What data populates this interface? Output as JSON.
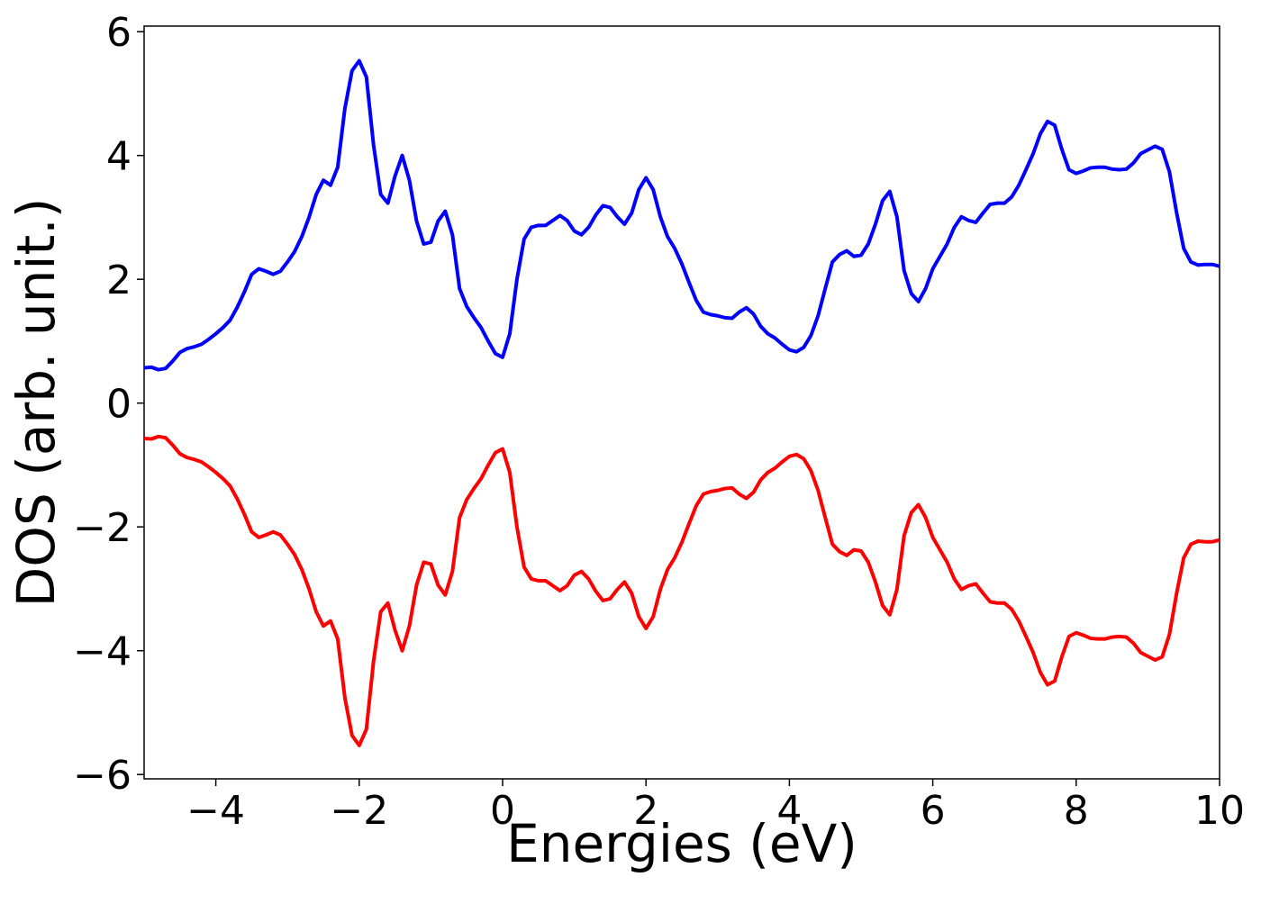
{
  "chart_data": {
    "type": "line",
    "xlabel": "Energies (eV)",
    "ylabel": "DOS (arb. unit.)",
    "x": [
      -5,
      -4.9,
      -4.8,
      -4.7,
      -4.6,
      -4.5,
      -4.4,
      -4.3,
      -4.2,
      -4.1,
      -4,
      -3.9,
      -3.8,
      -3.7,
      -3.6,
      -3.5,
      -3.4,
      -3.3,
      -3.2,
      -3.1,
      -3,
      -2.9,
      -2.8,
      -2.7,
      -2.6,
      -2.5,
      -2.4,
      -2.3,
      -2.2,
      -2.1,
      -2,
      -1.9,
      -1.8,
      -1.7,
      -1.6,
      -1.5,
      -1.4,
      -1.3,
      -1.2,
      -1.1,
      -1,
      -0.9,
      -0.8,
      -0.7,
      -0.6,
      -0.5,
      -0.4,
      -0.3,
      -0.2,
      -0.1,
      0,
      0.1,
      0.2,
      0.3,
      0.4,
      0.5,
      0.6,
      0.7,
      0.8,
      0.9,
      1,
      1.1,
      1.2,
      1.3,
      1.4,
      1.5,
      1.6,
      1.7,
      1.8,
      1.9,
      2,
      2.1,
      2.2,
      2.3,
      2.4,
      2.5,
      2.6,
      2.7,
      2.8,
      2.9,
      3,
      3.1,
      3.2,
      3.3,
      3.4,
      3.5,
      3.6,
      3.7,
      3.8,
      3.9,
      4,
      4.1,
      4.2,
      4.3,
      4.4,
      4.5,
      4.6,
      4.7,
      4.8,
      4.9,
      5,
      5.1,
      5.2,
      5.3,
      5.4,
      5.5,
      5.6,
      5.7,
      5.8,
      5.9,
      6,
      6.1,
      6.2,
      6.3,
      6.4,
      6.5,
      6.6,
      6.7,
      6.8,
      6.9,
      7,
      7.1,
      7.2,
      7.3,
      7.4,
      7.5,
      7.6,
      7.7,
      7.8,
      7.9,
      8,
      8.1,
      8.2,
      8.3,
      8.4,
      8.5,
      8.6,
      8.7,
      8.8,
      8.9,
      9,
      9.1,
      9.2,
      9.3,
      9.4,
      9.5,
      9.6,
      9.7,
      9.8,
      9.9,
      10
    ],
    "series": [
      {
        "color": "#0000ff",
        "values": [
          0.57,
          0.58,
          0.54,
          0.56,
          0.68,
          0.82,
          0.88,
          0.91,
          0.95,
          1.03,
          1.12,
          1.22,
          1.34,
          1.55,
          1.8,
          2.08,
          2.17,
          2.13,
          2.08,
          2.13,
          2.28,
          2.45,
          2.69,
          3.0,
          3.37,
          3.6,
          3.52,
          3.81,
          4.76,
          5.37,
          5.53,
          5.27,
          4.17,
          3.37,
          3.23,
          3.67,
          4.0,
          3.6,
          2.94,
          2.57,
          2.6,
          2.94,
          3.1,
          2.72,
          1.85,
          1.56,
          1.38,
          1.22,
          1.0,
          0.8,
          0.74,
          1.12,
          2.0,
          2.65,
          2.84,
          2.87,
          2.87,
          2.95,
          3.03,
          2.95,
          2.78,
          2.72,
          2.84,
          3.04,
          3.19,
          3.16,
          3.01,
          2.89,
          3.07,
          3.45,
          3.64,
          3.45,
          3.01,
          2.69,
          2.5,
          2.25,
          1.95,
          1.66,
          1.47,
          1.43,
          1.41,
          1.38,
          1.37,
          1.47,
          1.54,
          1.44,
          1.24,
          1.12,
          1.05,
          0.95,
          0.86,
          0.83,
          0.9,
          1.09,
          1.41,
          1.85,
          2.28,
          2.4,
          2.46,
          2.37,
          2.39,
          2.57,
          2.89,
          3.27,
          3.42,
          3.01,
          2.14,
          1.77,
          1.64,
          1.85,
          2.17,
          2.37,
          2.57,
          2.84,
          3.01,
          2.95,
          2.92,
          3.07,
          3.21,
          3.23,
          3.23,
          3.33,
          3.52,
          3.77,
          4.03,
          4.35,
          4.55,
          4.49,
          4.1,
          3.77,
          3.71,
          3.75,
          3.8,
          3.81,
          3.81,
          3.78,
          3.77,
          3.78,
          3.88,
          4.03,
          4.09,
          4.15,
          4.1,
          3.74,
          3.08,
          2.5,
          2.28,
          2.23,
          2.24,
          2.24,
          2.21
        ]
      },
      {
        "color": "#ff0000",
        "values": [
          -0.57,
          -0.58,
          -0.54,
          -0.56,
          -0.68,
          -0.82,
          -0.88,
          -0.91,
          -0.95,
          -1.03,
          -1.12,
          -1.22,
          -1.34,
          -1.55,
          -1.8,
          -2.08,
          -2.17,
          -2.13,
          -2.08,
          -2.13,
          -2.28,
          -2.45,
          -2.69,
          -3.0,
          -3.37,
          -3.6,
          -3.52,
          -3.81,
          -4.76,
          -5.37,
          -5.53,
          -5.27,
          -4.17,
          -3.37,
          -3.23,
          -3.67,
          -4.0,
          -3.6,
          -2.94,
          -2.57,
          -2.6,
          -2.94,
          -3.1,
          -2.72,
          -1.85,
          -1.56,
          -1.38,
          -1.22,
          -1.0,
          -0.8,
          -0.74,
          -1.12,
          -2.0,
          -2.65,
          -2.84,
          -2.87,
          -2.87,
          -2.95,
          -3.03,
          -2.95,
          -2.78,
          -2.72,
          -2.84,
          -3.04,
          -3.19,
          -3.16,
          -3.01,
          -2.89,
          -3.07,
          -3.45,
          -3.64,
          -3.45,
          -3.01,
          -2.69,
          -2.5,
          -2.25,
          -1.95,
          -1.66,
          -1.47,
          -1.43,
          -1.41,
          -1.38,
          -1.37,
          -1.47,
          -1.54,
          -1.44,
          -1.24,
          -1.12,
          -1.05,
          -0.95,
          -0.86,
          -0.83,
          -0.9,
          -1.09,
          -1.41,
          -1.85,
          -2.28,
          -2.4,
          -2.46,
          -2.37,
          -2.39,
          -2.57,
          -2.89,
          -3.27,
          -3.42,
          -3.01,
          -2.14,
          -1.77,
          -1.64,
          -1.85,
          -2.17,
          -2.37,
          -2.57,
          -2.84,
          -3.01,
          -2.95,
          -2.92,
          -3.07,
          -3.21,
          -3.23,
          -3.23,
          -3.33,
          -3.52,
          -3.77,
          -4.03,
          -4.35,
          -4.55,
          -4.49,
          -4.1,
          -3.77,
          -3.71,
          -3.75,
          -3.8,
          -3.81,
          -3.81,
          -3.78,
          -3.77,
          -3.78,
          -3.88,
          -4.03,
          -4.09,
          -4.15,
          -4.1,
          -3.74,
          -3.08,
          -2.5,
          -2.28,
          -2.23,
          -2.24,
          -2.24,
          -2.21
        ]
      }
    ],
    "xlim": [
      -5,
      10
    ],
    "xticks": [
      {
        "value": -4,
        "label": "−4"
      },
      {
        "value": -2,
        "label": "−2"
      },
      0,
      2,
      4,
      6,
      8,
      10
    ],
    "ylim": [
      -6.07,
      6.09
    ],
    "yticks": [
      {
        "value": -6,
        "label": "−6"
      },
      {
        "value": -4,
        "label": "−4"
      },
      {
        "value": -2,
        "label": "−2"
      },
      0,
      2,
      4,
      6
    ],
    "grid": false
  }
}
